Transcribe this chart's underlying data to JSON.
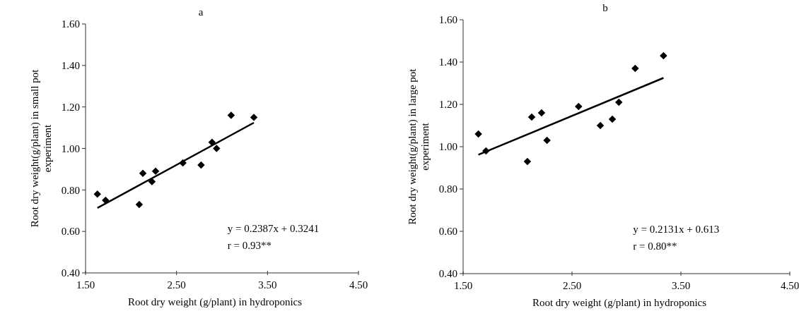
{
  "chart_data": [
    {
      "type": "scatter",
      "title": "a",
      "xlabel": "Root dry weight (g/plant) in hydroponics",
      "ylabel": "Root dry weight(g/plant) in small pot\nexperiment",
      "xlim": [
        1.5,
        4.5
      ],
      "xticks": [
        {
          "value": 1.5,
          "label": "1.50"
        },
        {
          "value": 2.5,
          "label": "2.50"
        },
        {
          "value": 3.5,
          "label": "3.50"
        },
        {
          "value": 4.5,
          "label": "4.50"
        }
      ],
      "ylim": [
        0.4,
        1.6
      ],
      "yticks": [
        {
          "value": 0.4,
          "label": "0.40"
        },
        {
          "value": 0.6,
          "label": "0.60"
        },
        {
          "value": 0.8,
          "label": "0.80"
        },
        {
          "value": 1.0,
          "label": "1.00"
        },
        {
          "value": 1.2,
          "label": "1.20"
        },
        {
          "value": 1.4,
          "label": "1.40"
        },
        {
          "value": 1.6,
          "label": "1.60"
        }
      ],
      "grid": false,
      "series": [
        {
          "marker": "diamond",
          "color": "#000000",
          "x": [
            1.63,
            1.72,
            2.09,
            2.13,
            2.23,
            2.27,
            2.57,
            2.77,
            2.89,
            2.94,
            3.1,
            3.35
          ],
          "values": [
            0.78,
            0.75,
            0.73,
            0.88,
            0.84,
            0.89,
            0.93,
            0.92,
            1.03,
            1.0,
            1.16,
            1.15
          ]
        },
        {
          "type": "line",
          "marker": "none",
          "color": "#000000",
          "x": [
            1.63,
            3.35
          ],
          "values": [
            0.713,
            1.124
          ]
        }
      ],
      "annotations": [
        "y = 0.2387x + 0.3241",
        "r = 0.93**"
      ]
    },
    {
      "type": "scatter",
      "title": "b",
      "xlabel": "Root dry weight (g/plant)  in hydroponics",
      "ylabel": "Root dry weight(g/plant) in large pot\nexperiment",
      "xlim": [
        1.5,
        4.5
      ],
      "xticks": [
        {
          "value": 1.5,
          "label": "1.50"
        },
        {
          "value": 2.5,
          "label": "2.50"
        },
        {
          "value": 3.5,
          "label": "3.50"
        },
        {
          "value": 4.5,
          "label": "4.50"
        }
      ],
      "ylim": [
        0.4,
        1.6
      ],
      "yticks": [
        {
          "value": 0.4,
          "label": "0.40"
        },
        {
          "value": 0.6,
          "label": "0.60"
        },
        {
          "value": 0.8,
          "label": "0.80"
        },
        {
          "value": 1.0,
          "label": "1.00"
        },
        {
          "value": 1.2,
          "label": "1.20"
        },
        {
          "value": 1.4,
          "label": "1.40"
        },
        {
          "value": 1.6,
          "label": "1.60"
        }
      ],
      "grid": false,
      "series": [
        {
          "marker": "diamond",
          "color": "#000000",
          "x": [
            1.64,
            1.71,
            2.09,
            2.13,
            2.22,
            2.27,
            2.56,
            2.76,
            2.87,
            2.93,
            3.08,
            3.34
          ],
          "values": [
            1.06,
            0.98,
            0.93,
            1.14,
            1.16,
            1.03,
            1.19,
            1.1,
            1.13,
            1.21,
            1.37,
            1.43
          ]
        },
        {
          "type": "line",
          "marker": "none",
          "color": "#000000",
          "x": [
            1.64,
            3.34
          ],
          "values": [
            0.962,
            1.325
          ]
        }
      ],
      "annotations": [
        "y = 0.2131x + 0.613",
        "r = 0.80**"
      ]
    }
  ]
}
